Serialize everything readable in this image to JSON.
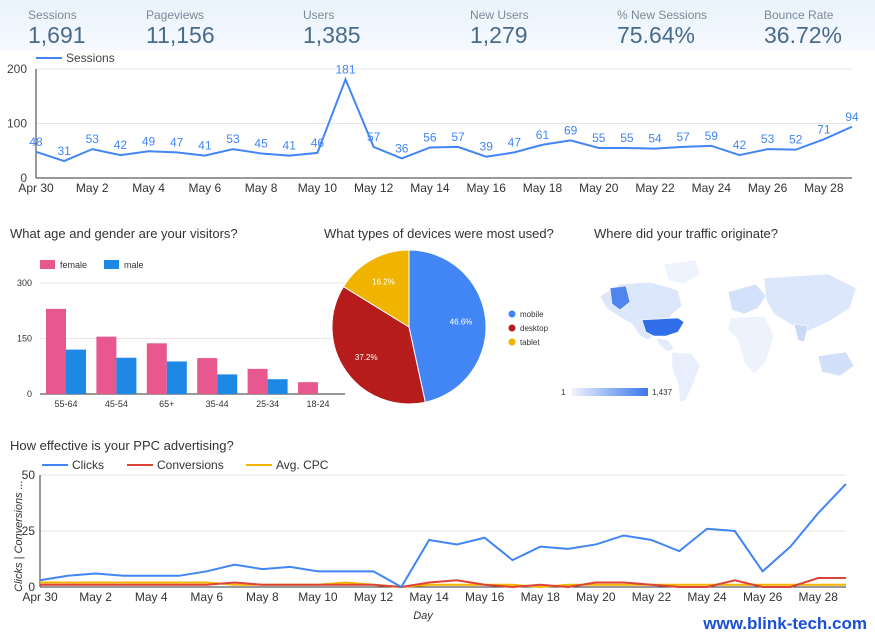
{
  "kpis": [
    {
      "label": "Sessions",
      "value": "1,691"
    },
    {
      "label": "Pageviews",
      "value": "11,156"
    },
    {
      "label": "Users",
      "value": "1,385"
    },
    {
      "label": "New Users",
      "value": "1,279"
    },
    {
      "label": "% New Sessions",
      "value": "75.64%"
    },
    {
      "label": "Bounce Rate",
      "value": "36.72%"
    }
  ],
  "colors": {
    "blue": "#4285f4",
    "pink": "#e8578e",
    "maleblue": "#1e88e5",
    "red": "#db4437",
    "yellow": "#f4b400",
    "darkred": "#b71c1c",
    "gold": "#f0b400"
  },
  "sections": {
    "age": "What age and gender are your visitors?",
    "devices": "What types of devices were most used?",
    "traffic": "Where did your traffic originate?",
    "ppc": "How effective is your PPC advertising?"
  },
  "map": {
    "min_label": "1",
    "max_label": "1,437"
  },
  "watermark": "www.blink-tech.com",
  "chart_data": [
    {
      "type": "line",
      "legend": [
        "Sessions"
      ],
      "x": [
        "Apr 30",
        "May 1",
        "May 2",
        "May 3",
        "May 4",
        "May 5",
        "May 6",
        "May 7",
        "May 8",
        "May 9",
        "May 10",
        "May 11",
        "May 12",
        "May 13",
        "May 14",
        "May 15",
        "May 16",
        "May 17",
        "May 18",
        "May 19",
        "May 20",
        "May 21",
        "May 22",
        "May 23",
        "May 24",
        "May 25",
        "May 26",
        "May 27",
        "May 28",
        "May 29"
      ],
      "tick_labels": [
        "Apr 30",
        "May 2",
        "May 4",
        "May 6",
        "May 8",
        "May 10",
        "May 12",
        "May 14",
        "May 16",
        "May 18",
        "May 20",
        "May 22",
        "May 24",
        "May 26",
        "May 28"
      ],
      "values": [
        48,
        31,
        53,
        42,
        49,
        47,
        41,
        53,
        45,
        41,
        46,
        181,
        57,
        36,
        56,
        57,
        39,
        47,
        61,
        69,
        55,
        55,
        54,
        57,
        59,
        42,
        53,
        52,
        71,
        94
      ],
      "ylim": [
        0,
        200
      ],
      "yticks": [
        0,
        100,
        200
      ]
    },
    {
      "type": "bar",
      "legend": [
        "female",
        "male"
      ],
      "categories": [
        "55-64",
        "45-54",
        "65+",
        "35-44",
        "25-34",
        "18-24"
      ],
      "series": [
        {
          "name": "female",
          "values": [
            230,
            155,
            137,
            97,
            68,
            32
          ]
        },
        {
          "name": "male",
          "values": [
            120,
            98,
            88,
            53,
            40,
            0
          ]
        }
      ],
      "ylim": [
        0,
        300
      ],
      "yticks": [
        0,
        150,
        300
      ]
    },
    {
      "type": "pie",
      "legend": [
        "mobile",
        "desktop",
        "tablet"
      ],
      "slices": [
        {
          "name": "mobile",
          "value": 46.6,
          "label": "46.6%"
        },
        {
          "name": "desktop",
          "value": 37.2,
          "label": "37.2%"
        },
        {
          "name": "tablet",
          "value": 16.2,
          "label": "16.2%"
        }
      ]
    },
    {
      "type": "line",
      "legend": [
        "Clicks",
        "Conversions",
        "Avg. CPC"
      ],
      "xlabel": "Day",
      "ylabel": "Clicks | Conversions ...",
      "x": [
        "Apr 30",
        "May 1",
        "May 2",
        "May 3",
        "May 4",
        "May 5",
        "May 6",
        "May 7",
        "May 8",
        "May 9",
        "May 10",
        "May 11",
        "May 12",
        "May 13",
        "May 14",
        "May 15",
        "May 16",
        "May 17",
        "May 18",
        "May 19",
        "May 20",
        "May 21",
        "May 22",
        "May 23",
        "May 24",
        "May 25",
        "May 26",
        "May 27",
        "May 28",
        "May 29"
      ],
      "tick_labels": [
        "Apr 30",
        "May 2",
        "May 4",
        "May 6",
        "May 8",
        "May 10",
        "May 12",
        "May 14",
        "May 16",
        "May 18",
        "May 20",
        "May 22",
        "May 24",
        "May 26",
        "May 28"
      ],
      "series": [
        {
          "name": "Clicks",
          "values": [
            3,
            5,
            6,
            5,
            5,
            5,
            7,
            10,
            8,
            9,
            7,
            7,
            7,
            0,
            21,
            19,
            22,
            12,
            18,
            17,
            19,
            23,
            21,
            16,
            26,
            25,
            7,
            18,
            33,
            46
          ]
        },
        {
          "name": "Conversions",
          "values": [
            1,
            1,
            1,
            1,
            1,
            1,
            1,
            2,
            1,
            1,
            1,
            1,
            1,
            0,
            2,
            3,
            1,
            0,
            1,
            0,
            2,
            2,
            1,
            0,
            0,
            3,
            0,
            0,
            4,
            4
          ]
        },
        {
          "name": "Avg. CPC",
          "values": [
            2,
            2,
            2,
            2,
            2,
            2,
            2,
            1,
            1,
            1,
            1,
            2,
            1,
            0,
            1,
            1,
            1,
            1,
            0,
            1,
            1,
            1,
            1,
            1,
            1,
            1,
            1,
            1,
            1,
            1
          ]
        }
      ],
      "ylim": [
        0,
        50
      ],
      "yticks": [
        0,
        25,
        50
      ]
    }
  ]
}
